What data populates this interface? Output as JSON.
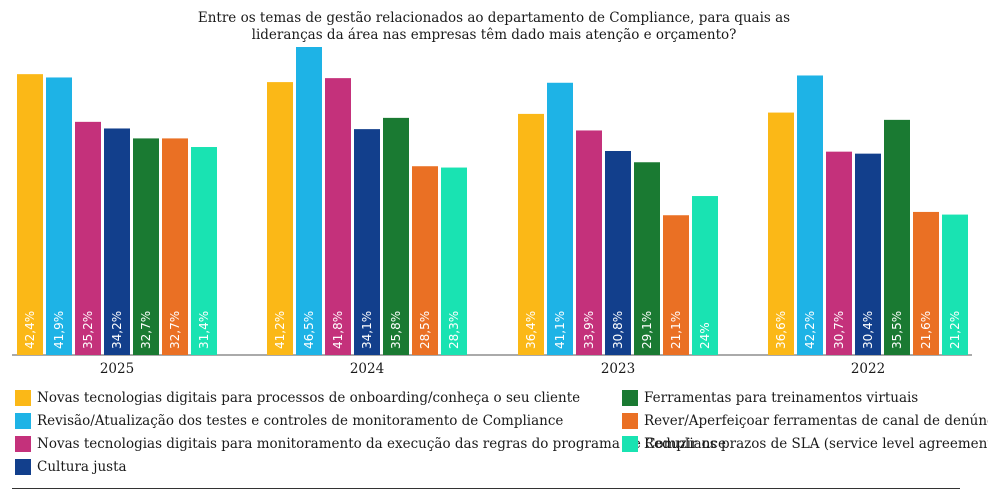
{
  "chart_data": {
    "type": "bar",
    "title_lines": [
      "Entre os temas de gestão relacionados ao departamento de Compliance, para quais as",
      "lideranças da área nas empresas têm dado mais atenção e orçamento?"
    ],
    "categories": [
      "2025",
      "2024",
      "2023",
      "2022"
    ],
    "ylim": [
      0,
      46.5
    ],
    "grid": false,
    "legend_position": "bottom",
    "series": [
      {
        "name": "Novas tecnologias digitais para processos de onboarding/conheça o seu cliente",
        "color": "#fbb817",
        "values": [
          42.4,
          41.2,
          36.4,
          36.6
        ],
        "labels": [
          "42,4%",
          "41,2%",
          "36,4%",
          "36,6%"
        ]
      },
      {
        "name": "Revisão/Atualização dos testes e controles de monitoramento de Compliance",
        "color": "#1eb3e6",
        "values": [
          41.9,
          46.5,
          41.1,
          42.2
        ],
        "labels": [
          "41,9%",
          "46,5%",
          "41,1%",
          "42,2%"
        ]
      },
      {
        "name": "Novas tecnologias digitais para monitoramento da execução das regras do programa de Compliance",
        "color": "#c4317b",
        "values": [
          35.2,
          41.8,
          33.9,
          30.7
        ],
        "labels": [
          "35,2%",
          "41,8%",
          "33,9%",
          "30,7%"
        ]
      },
      {
        "name": "Cultura justa",
        "color": "#123f8c",
        "values": [
          34.2,
          34.1,
          30.8,
          30.4
        ],
        "labels": [
          "34,2%",
          "34,1%",
          "30,8%",
          "30,4%"
        ]
      },
      {
        "name": "Ferramentas para treinamentos virtuais",
        "color": "#1a7a32",
        "values": [
          32.7,
          35.8,
          29.1,
          35.5
        ],
        "labels": [
          "32,7%",
          "35,8%",
          "29,1%",
          "35,5%"
        ]
      },
      {
        "name": "Rever/Aperfeiçoar ferramentas de canal de denúncias",
        "color": "#ea7024",
        "values": [
          32.7,
          28.5,
          21.1,
          21.6
        ],
        "labels": [
          "32,7%",
          "28,5%",
          "21,1%",
          "21,6%"
        ]
      },
      {
        "name": "Reduzir os prazos de SLA (service level agreement)",
        "color": "#19e3b2",
        "values": [
          31.4,
          28.3,
          24,
          21.2
        ],
        "labels": [
          "31,4%",
          "28,3%",
          "24%",
          "21,2%"
        ]
      }
    ]
  }
}
